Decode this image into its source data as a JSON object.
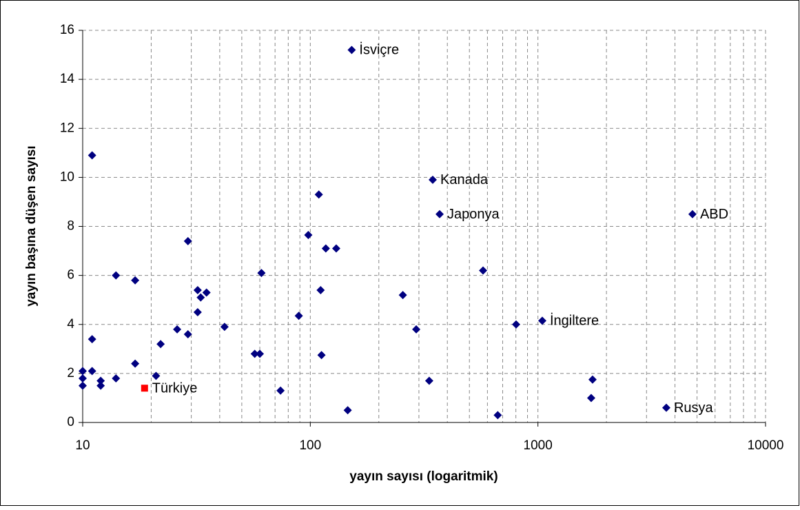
{
  "chart_data": {
    "type": "scatter",
    "xlabel": "yayın sayısı (logaritmik)",
    "ylabel": "yayın başına düşen sayısı",
    "xscale": "log",
    "grid": true,
    "minor_grid": true,
    "xlim": [
      10,
      10000
    ],
    "xticks": [
      10,
      100,
      1000,
      10000
    ],
    "ylim": [
      0,
      16
    ],
    "yticks": [
      0,
      2,
      4,
      6,
      8,
      10,
      12,
      14,
      16
    ],
    "series": [
      {
        "name": null,
        "color": "#000080",
        "marker": "diamond",
        "x": [
          10,
          10,
          10,
          11,
          11,
          11,
          12,
          12,
          14,
          14,
          17,
          17,
          21,
          22,
          26,
          29,
          29,
          32,
          32,
          33,
          35,
          42,
          57,
          60,
          61,
          74,
          89,
          98,
          109,
          111,
          112,
          117,
          130,
          146,
          152,
          255,
          292,
          333,
          345,
          370,
          574,
          666,
          802,
          1045,
          1738,
          1714,
          3664,
          4775
        ],
        "values": [
          2.1,
          1.8,
          1.5,
          10.9,
          3.4,
          2.1,
          1.7,
          1.5,
          6.0,
          1.8,
          5.8,
          2.4,
          1.9,
          3.2,
          3.8,
          7.4,
          3.6,
          5.4,
          4.5,
          5.1,
          5.3,
          3.9,
          2.8,
          2.8,
          6.1,
          1.3,
          4.35,
          7.65,
          9.3,
          5.4,
          2.75,
          7.1,
          7.1,
          0.5,
          15.2,
          5.2,
          3.8,
          1.7,
          9.9,
          8.5,
          6.2,
          0.3,
          4.0,
          4.15,
          1.75,
          1.0,
          0.6,
          8.5
        ],
        "labels": [
          null,
          null,
          null,
          null,
          null,
          null,
          null,
          null,
          null,
          null,
          null,
          null,
          null,
          null,
          null,
          null,
          null,
          null,
          null,
          null,
          null,
          null,
          null,
          null,
          null,
          null,
          null,
          null,
          null,
          null,
          null,
          null,
          null,
          null,
          "İsviçre",
          null,
          null,
          null,
          "Kanada",
          "Japonya",
          null,
          null,
          null,
          "İngiltere",
          null,
          null,
          "Rusya",
          "ABD"
        ]
      },
      {
        "name": null,
        "color": "#ff0000",
        "marker": "square",
        "x": [
          18.7
        ],
        "values": [
          1.4
        ],
        "labels": [
          "Türkiye"
        ]
      }
    ]
  }
}
